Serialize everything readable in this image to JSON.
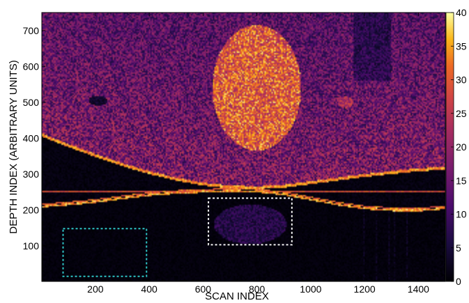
{
  "chart_data": {
    "type": "heatmap",
    "title": "",
    "xlabel": "SCAN INDEX",
    "ylabel": "DEPTH INDEX (ARBITRARY UNITS)",
    "xlim": [
      1,
      1500
    ],
    "ylim": [
      1,
      750
    ],
    "xticks": [
      200,
      400,
      600,
      800,
      1000,
      1200,
      1400
    ],
    "yticks": [
      100,
      200,
      300,
      400,
      500,
      600,
      700
    ],
    "colorbar": {
      "colormap": "inferno",
      "range": [
        0,
        40
      ],
      "ticks": [
        0,
        5,
        10,
        15,
        20,
        25,
        30,
        35,
        40
      ]
    },
    "features": {
      "upper_surface": [
        [
          1,
          405
        ],
        [
          100,
          375
        ],
        [
          200,
          348
        ],
        [
          300,
          322
        ],
        [
          400,
          300
        ],
        [
          500,
          282
        ],
        [
          600,
          268
        ],
        [
          700,
          260
        ],
        [
          800,
          258
        ],
        [
          900,
          262
        ],
        [
          1000,
          272
        ],
        [
          1100,
          282
        ],
        [
          1200,
          292
        ],
        [
          1300,
          300
        ],
        [
          1400,
          308
        ],
        [
          1500,
          312
        ]
      ],
      "lower_surface": [
        [
          1,
          212
        ],
        [
          100,
          218
        ],
        [
          200,
          225
        ],
        [
          300,
          235
        ],
        [
          400,
          244
        ],
        [
          500,
          250
        ],
        [
          600,
          253
        ],
        [
          700,
          256
        ],
        [
          800,
          254
        ],
        [
          900,
          246
        ],
        [
          1000,
          232
        ],
        [
          1100,
          218
        ],
        [
          1200,
          207
        ],
        [
          1300,
          202
        ],
        [
          1400,
          201
        ],
        [
          1500,
          207
        ]
      ],
      "horizontal_artifact_depth": 252,
      "bright_inclusion": {
        "center": [
          800,
          540
        ],
        "radius_x": 165,
        "radius_y": 175,
        "level": 33
      },
      "small_spot": {
        "center": [
          1130,
          500
        ],
        "level": 24
      },
      "dark_spot": {
        "center": [
          210,
          505
        ]
      }
    },
    "annotations": [
      {
        "type": "dashed-rectangle",
        "color": "#2ec4c4",
        "x_range": [
          80,
          390
        ],
        "y_range": [
          15,
          148
        ]
      },
      {
        "type": "dashed-rectangle",
        "color": "#f4f4f4",
        "x_range": [
          620,
          930
        ],
        "y_range": [
          103,
          233
        ]
      }
    ]
  }
}
